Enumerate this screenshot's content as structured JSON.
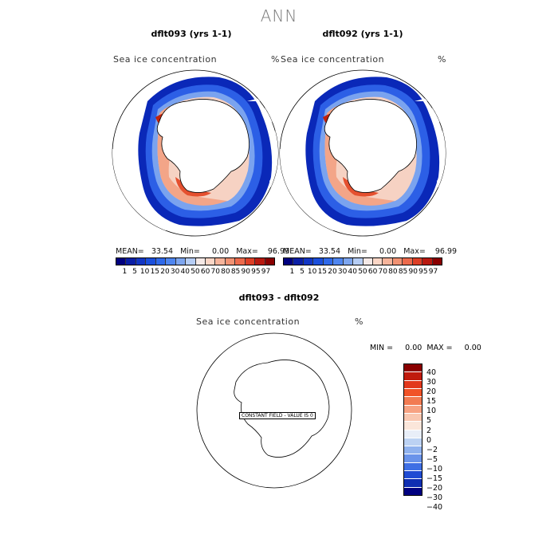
{
  "figure": {
    "title": "ANN"
  },
  "panels": [
    {
      "title": "dflt093 (yrs 1-1)",
      "variable": "Sea ice concentration",
      "units": "%",
      "stats": "MEAN=   33.54   Min=     0.00   Max=    96.99"
    },
    {
      "title": "dflt092 (yrs 1-1)",
      "variable": "Sea ice concentration",
      "units": "%",
      "stats": "MEAN=   33.54   Min=     0.00   Max=    96.99"
    }
  ],
  "abs_colorbar": {
    "ticks": [
      "1",
      "5",
      "10",
      "15",
      "20",
      "30",
      "40",
      "50",
      "60",
      "70",
      "80",
      "85",
      "90",
      "95",
      "97"
    ],
    "colors": [
      "#00007f",
      "#0a1fa6",
      "#1236c4",
      "#1b4fdc",
      "#2f69ea",
      "#4f86f0",
      "#7ea6ef",
      "#b6cdf4",
      "#f5e9e6",
      "#fbd6c6",
      "#f6b49b",
      "#f19273",
      "#ec6a4c",
      "#dd3f26",
      "#b8190f",
      "#8a0000"
    ]
  },
  "diff_panel": {
    "title": "dflt093 - dflt092",
    "variable": "Sea ice concentration",
    "units": "%",
    "stats": "MIN =     0.00  MAX =     0.00",
    "annotation": "CONSTANT FIELD - VALUE IS 0"
  },
  "diff_colorbar": {
    "ticks": [
      "40",
      "30",
      "20",
      "15",
      "10",
      "5",
      "2",
      "0",
      "−2",
      "−5",
      "−10",
      "−15",
      "−20",
      "−30",
      "−40"
    ],
    "colors": [
      "#8a0000",
      "#c01b0d",
      "#e2381c",
      "#f15328",
      "#f27b52",
      "#f7a282",
      "#f9c7b0",
      "#fbe6da",
      "#e8eef8",
      "#bcd2f3",
      "#90b2ee",
      "#6a93ea",
      "#3f6fe4",
      "#1f4bd3",
      "#0f2eb2",
      "#000080"
    ]
  }
}
